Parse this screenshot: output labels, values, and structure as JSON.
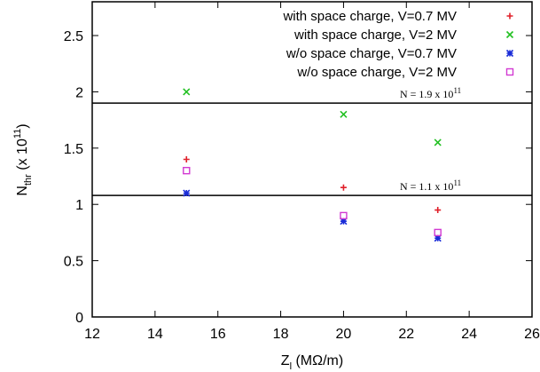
{
  "chart_data": {
    "type": "scatter",
    "xlabel": "Z",
    "xlabel_sub": "l",
    "xlabel_unit": " (MΩ/m)",
    "ylabel": "N",
    "ylabel_sub": "thr",
    "ylabel_unit_prefix": " (x 10",
    "ylabel_unit_exp": "11",
    "ylabel_unit_suffix": ")",
    "xlim": [
      12,
      26
    ],
    "ylim": [
      0,
      2.8
    ],
    "xticks": [
      12,
      14,
      16,
      18,
      20,
      22,
      24,
      26
    ],
    "xtick_labels": [
      "12",
      "14",
      "16",
      "18",
      "20",
      "22",
      "24",
      "26"
    ],
    "yticks": [
      0,
      0.5,
      1,
      1.5,
      2,
      2.5
    ],
    "ytick_labels": [
      "0",
      "0.5",
      "1",
      "1.5",
      "2",
      "2.5"
    ],
    "grid": false,
    "legend_position": "top-right",
    "series": [
      {
        "name": "with space charge, V=0.7 MV",
        "marker": "plus",
        "color": "#e0202a",
        "x": [
          15,
          20,
          23
        ],
        "y": [
          1.4,
          1.15,
          0.95
        ]
      },
      {
        "name": "with space charge, V=2 MV",
        "marker": "cross",
        "color": "#22c022",
        "x": [
          15,
          20,
          23
        ],
        "y": [
          2.0,
          1.8,
          1.55
        ]
      },
      {
        "name": "w/o space charge, V=0.7 MV",
        "marker": "star",
        "color": "#1a2cd8",
        "x": [
          15,
          20,
          23
        ],
        "y": [
          1.1,
          0.85,
          0.7
        ]
      },
      {
        "name": "w/o space charge, V=2 MV",
        "marker": "square",
        "color": "#d23ad2",
        "x": [
          15,
          20,
          23
        ],
        "y": [
          1.3,
          0.9,
          0.75
        ]
      }
    ],
    "reference_lines": [
      {
        "y": 1.9,
        "label_prefix": "N = 1.9 x 10",
        "label_exp": "11"
      },
      {
        "y": 1.08,
        "label_prefix": "N = 1.1 x 10",
        "label_exp": "11"
      }
    ]
  }
}
